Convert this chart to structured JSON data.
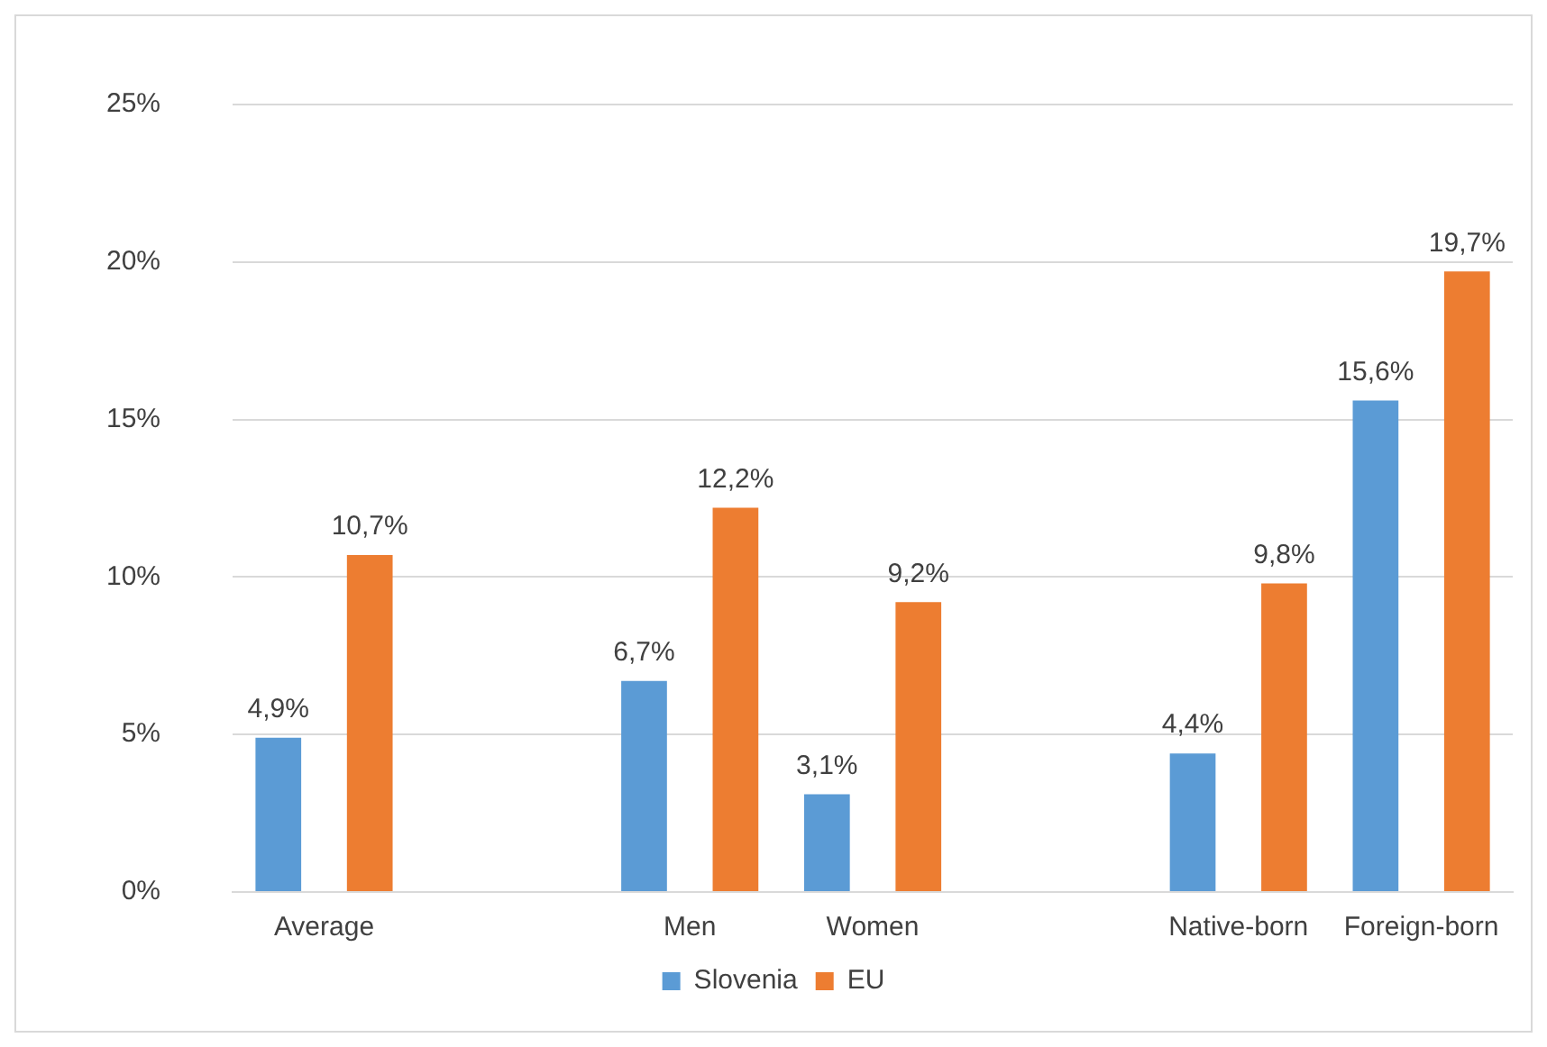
{
  "chart_data": {
    "type": "bar",
    "categories": [
      "Average",
      null,
      "Men",
      "Women",
      null,
      "Native-born",
      "Foreign-born"
    ],
    "series": [
      {
        "name": "Slovenia",
        "color": "#5b9bd5",
        "values": [
          4.9,
          null,
          6.7,
          3.1,
          null,
          4.4,
          15.6
        ],
        "value_labels": [
          "4,9%",
          null,
          "6,7%",
          "3,1%",
          null,
          "4,4%",
          "15,6%"
        ]
      },
      {
        "name": "EU",
        "color": "#ed7d31",
        "values": [
          10.7,
          null,
          12.2,
          9.2,
          null,
          9.8,
          19.7
        ],
        "value_labels": [
          "10,7%",
          null,
          "12,2%",
          "9,2%",
          null,
          "9,8%",
          "19,7%"
        ]
      }
    ],
    "ylim": [
      0,
      25
    ],
    "yticks": [
      {
        "value": 0,
        "label": "0%"
      },
      {
        "value": 5,
        "label": "5%"
      },
      {
        "value": 10,
        "label": "10%"
      },
      {
        "value": 15,
        "label": "15%"
      },
      {
        "value": 20,
        "label": "20%"
      },
      {
        "value": 25,
        "label": "25%"
      }
    ],
    "grid": "y",
    "legend": "bottom"
  }
}
